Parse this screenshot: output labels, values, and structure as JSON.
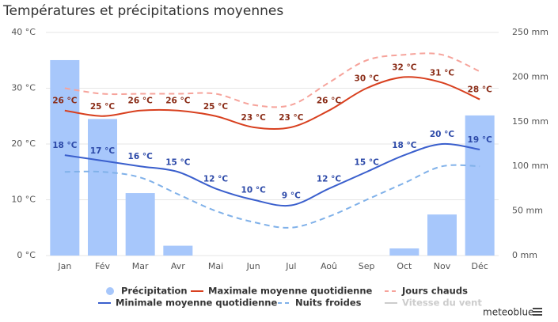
{
  "chart_data": {
    "type": "combo",
    "title": "Températures et précipitations moyennes",
    "categories": [
      "Jan",
      "Fév",
      "Mar",
      "Avr",
      "Mai",
      "Jun",
      "Jul",
      "Aoû",
      "Sep",
      "Oct",
      "Nov",
      "Déc"
    ],
    "ylim": [
      0,
      40
    ],
    "yticks": [
      {
        "value": 0,
        "label": "0 °C"
      },
      {
        "value": 10,
        "label": "10 °C"
      },
      {
        "value": 20,
        "label": "20 °C"
      },
      {
        "value": 30,
        "label": "30 °C"
      },
      {
        "value": 40,
        "label": "40 °C"
      }
    ],
    "y2lim": [
      0,
      250
    ],
    "y2ticks": [
      {
        "value": 0,
        "label": "0 mm"
      },
      {
        "value": 50,
        "label": "50 mm"
      },
      {
        "value": 100,
        "label": "100 mm"
      },
      {
        "value": 150,
        "label": "150 mm"
      },
      {
        "value": 200,
        "label": "200 mm"
      },
      {
        "value": 250,
        "label": "250 mm"
      }
    ],
    "grid": true,
    "series": [
      {
        "name": "Précipitation",
        "type": "bar",
        "axis": "y2",
        "color": "#a7c7fb",
        "values": [
          219,
          153,
          70,
          11,
          0,
          0,
          0,
          0,
          0,
          8,
          46,
          157
        ]
      },
      {
        "name": "Maximale moyenne quotidienne",
        "type": "line",
        "color": "#d8401f",
        "label_color": "#8a2c17",
        "values": [
          26,
          25,
          26,
          26,
          25,
          23,
          23,
          26,
          30,
          32,
          31,
          28
        ],
        "value_labels": [
          "26 °C",
          "25 °C",
          "26 °C",
          "26 °C",
          "25 °C",
          "23 °C",
          "23 °C",
          "26 °C",
          "30 °C",
          "32 °C",
          "31 °C",
          "28 °C"
        ]
      },
      {
        "name": "Jours chauds",
        "type": "line",
        "dashed": true,
        "color": "#f6a39b",
        "values": [
          30,
          29,
          29,
          29,
          29,
          27,
          27,
          31,
          35,
          36,
          36,
          33
        ]
      },
      {
        "name": "Minimale moyenne quotidienne",
        "type": "line",
        "color": "#3a5fcd",
        "label_color": "#2c49a8",
        "values": [
          18,
          17,
          16,
          15,
          12,
          10,
          9,
          12,
          15,
          18,
          20,
          19
        ],
        "value_labels": [
          "18 °C",
          "17 °C",
          "16 °C",
          "15 °C",
          "12 °C",
          "10 °C",
          "9 °C",
          "12 °C",
          "15 °C",
          "18 °C",
          "20 °C",
          "19 °C"
        ]
      },
      {
        "name": "Nuits froides",
        "type": "line",
        "dashed": true,
        "color": "#80b1e9",
        "values": [
          15,
          15,
          14,
          11,
          8,
          6,
          5,
          7,
          10,
          13,
          16,
          16
        ]
      },
      {
        "name": "Vitesse du vent",
        "type": "line",
        "visible": false,
        "color": "#cccccc"
      }
    ],
    "brand": "meteoblue"
  }
}
